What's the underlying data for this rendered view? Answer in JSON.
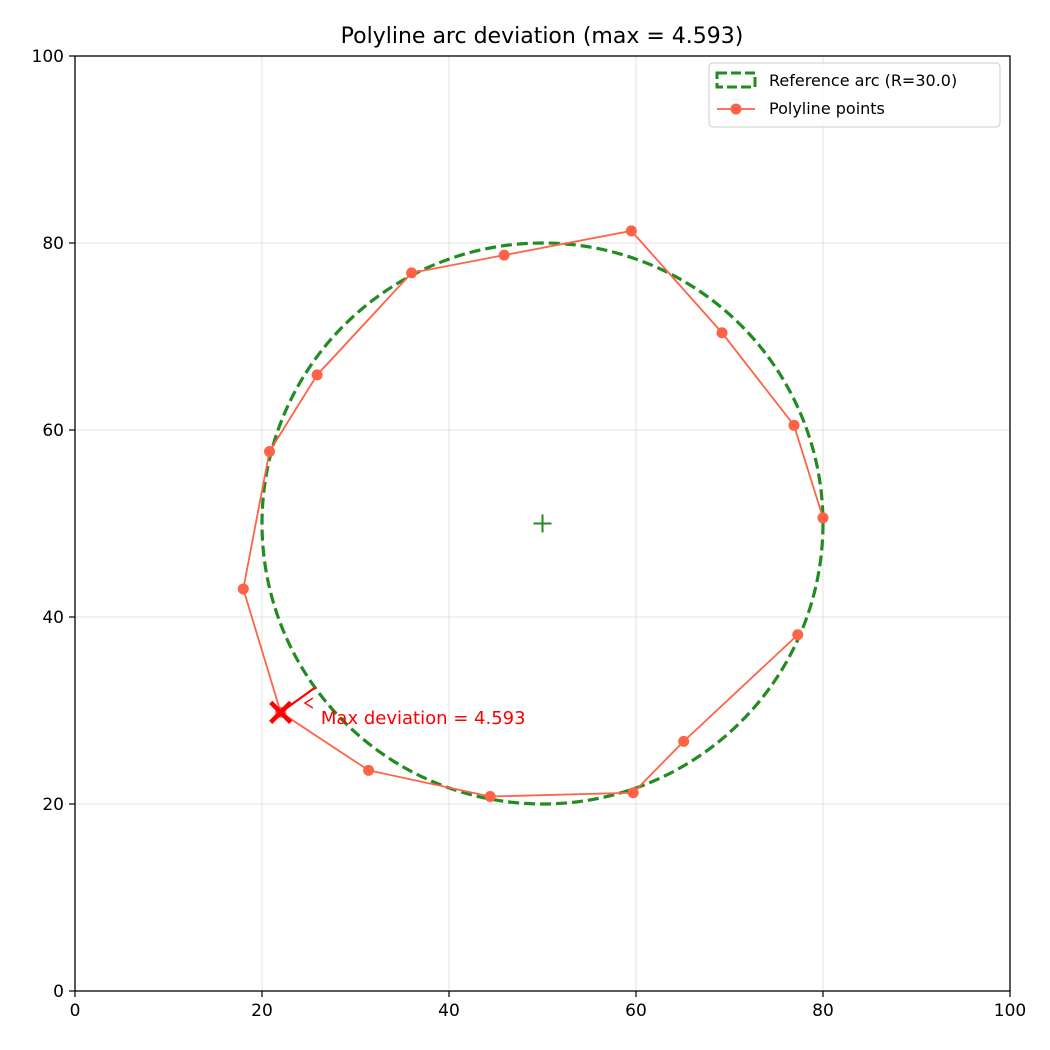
{
  "chart_data": {
    "type": "line",
    "title": "Polyline arc deviation  (max = 4.593)",
    "xlabel": "",
    "ylabel": "",
    "xlim": [
      0,
      100
    ],
    "ylim": [
      0,
      100
    ],
    "xticks": [
      0,
      20,
      40,
      60,
      80,
      100
    ],
    "yticks": [
      0,
      20,
      40,
      60,
      80,
      100
    ],
    "grid": true,
    "legend_position": "top-right",
    "legend": [
      {
        "label": "Reference arc (R=30.0)",
        "style": "dashed",
        "color": "#228B22"
      },
      {
        "label": "Polyline points",
        "style": "line-marker",
        "color": "#FF6347"
      }
    ],
    "reference_arc": {
      "center": [
        50,
        50
      ],
      "radius": 30.0,
      "color": "#228B22"
    },
    "series": [
      {
        "name": "Polyline points",
        "color": "#FF6347",
        "points": [
          [
            80.0,
            50.6
          ],
          [
            76.9,
            60.5
          ],
          [
            69.2,
            70.4
          ],
          [
            59.5,
            81.3
          ],
          [
            45.9,
            78.7
          ],
          [
            36.0,
            76.8
          ],
          [
            25.9,
            65.9
          ],
          [
            20.8,
            57.7
          ],
          [
            18.0,
            43.0
          ],
          [
            22.0,
            29.8
          ],
          [
            31.4,
            23.6
          ],
          [
            44.4,
            20.8
          ],
          [
            59.7,
            21.2
          ],
          [
            65.1,
            26.7
          ],
          [
            77.3,
            38.1
          ]
        ]
      }
    ],
    "max_deviation": {
      "point": [
        22.0,
        29.8
      ],
      "value": 4.593,
      "label": "Max deviation = 4.593",
      "label_position": [
        26.3,
        29.3
      ],
      "color": "#FF0000"
    }
  }
}
